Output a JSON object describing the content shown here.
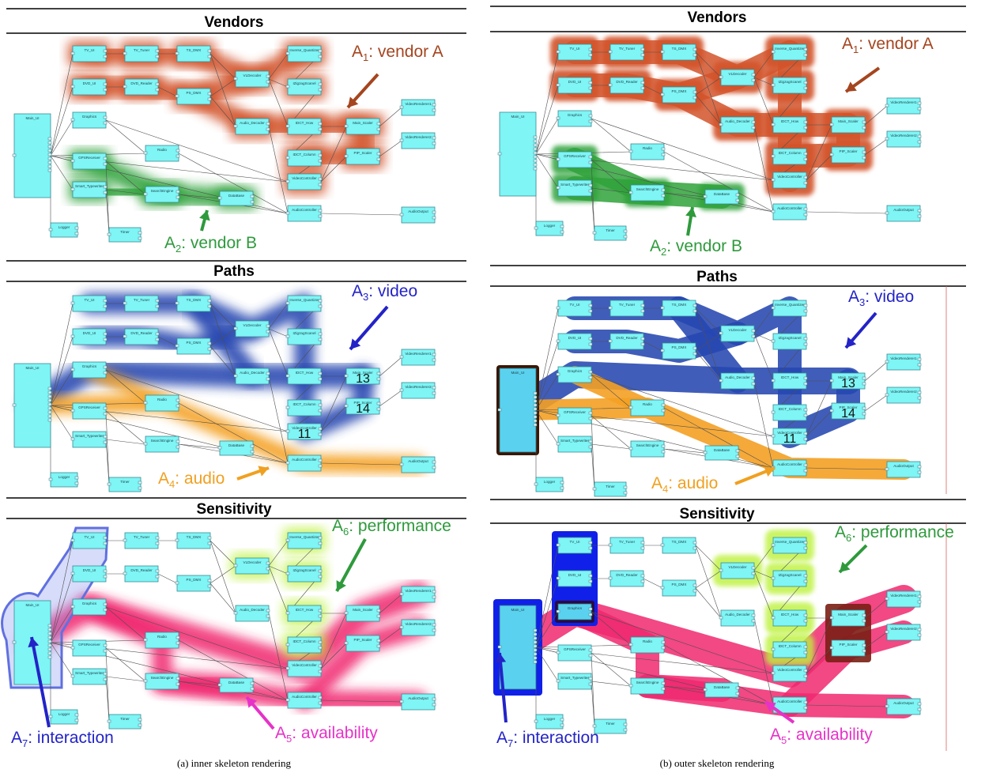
{
  "panel_titles": [
    "Vendors",
    "Paths",
    "Sensitivity"
  ],
  "captions": [
    "(a)  inner skeleton rendering",
    "(b)  outer skeleton rendering"
  ],
  "annotations": {
    "a1": {
      "letter": "A",
      "sub": "1",
      "text": ": vendor A",
      "color": "#a5451f"
    },
    "a2": {
      "letter": "A",
      "sub": "2",
      "text": ": vendor B",
      "color": "#2e9a3c"
    },
    "a3": {
      "letter": "A",
      "sub": "3",
      "text": ": video",
      "color": "#2323c8"
    },
    "a4": {
      "letter": "A",
      "sub": "4",
      "text": ": audio",
      "color": "#f0a020"
    },
    "a5": {
      "letter": "A",
      "sub": "5",
      "text": ": availability",
      "color": "#e632c8"
    },
    "a6": {
      "letter": "A",
      "sub": "6",
      "text": ": performance",
      "color": "#2e9a3c"
    },
    "a7": {
      "letter": "A",
      "sub": "7",
      "text": ": interaction",
      "color": "#2323c8"
    }
  },
  "path_numbers": [
    "13",
    "14",
    "11"
  ],
  "components": [
    {
      "id": "main",
      "label": "Main_UI"
    },
    {
      "id": "tvui",
      "label": "TV_UI"
    },
    {
      "id": "tvtuner",
      "label": "TV_Tuner"
    },
    {
      "id": "tsdmx",
      "label": "TS_DMX"
    },
    {
      "id": "vldec",
      "label": "VLDecoder"
    },
    {
      "id": "invq",
      "label": "Inverse_Quantizer"
    },
    {
      "id": "dvdui",
      "label": "DVD_UI"
    },
    {
      "id": "dvdrd",
      "label": "DVD_Reader"
    },
    {
      "id": "psdmx",
      "label": "PS_DMX"
    },
    {
      "id": "izig",
      "label": "IZigzagScanel"
    },
    {
      "id": "graph",
      "label": "Graphics"
    },
    {
      "id": "adec",
      "label": "Audio_Decoder"
    },
    {
      "id": "idcth",
      "label": "IDCT_How"
    },
    {
      "id": "mscal",
      "label": "Main_Scaler"
    },
    {
      "id": "vr1",
      "label": "VideoRenderer1"
    },
    {
      "id": "vr2",
      "label": "VideoRenderer2"
    },
    {
      "id": "idctc",
      "label": "IDCT_Column"
    },
    {
      "id": "pip",
      "label": "PIP_Scaler"
    },
    {
      "id": "radio",
      "label": "Radio"
    },
    {
      "id": "gps",
      "label": "GPSReceiver"
    },
    {
      "id": "vctrl",
      "label": "VideoController"
    },
    {
      "id": "smart",
      "label": "Smart_Typewriter"
    },
    {
      "id": "search",
      "label": "SearchEngine"
    },
    {
      "id": "db",
      "label": "DataBase"
    },
    {
      "id": "actrl",
      "label": "AudioController"
    },
    {
      "id": "aout",
      "label": "AudioOutput"
    },
    {
      "id": "logger",
      "label": "Logger"
    },
    {
      "id": "timer",
      "label": "Timer"
    }
  ]
}
